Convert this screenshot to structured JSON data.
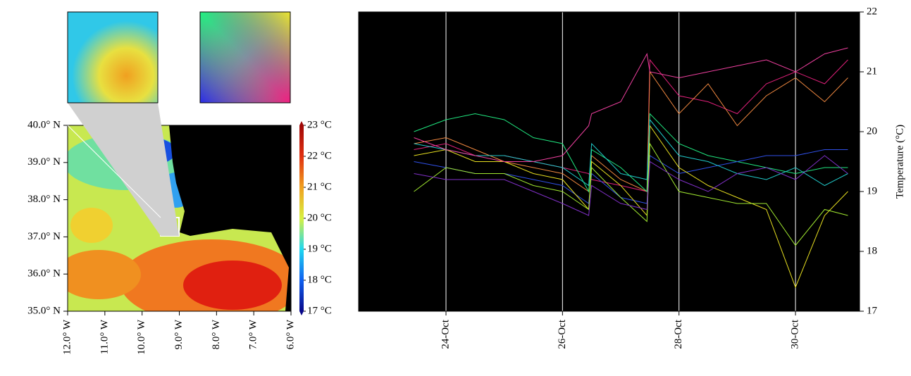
{
  "chart_data": [
    {
      "type": "map",
      "xlim": [
        -12,
        -6
      ],
      "ylim": [
        35,
        40
      ],
      "xticks": [
        {
          "value": -12,
          "label": "12.0° W"
        },
        {
          "value": -11,
          "label": "11.0° W"
        },
        {
          "value": -10,
          "label": "10.0° W"
        },
        {
          "value": -9,
          "label": "9.0° W"
        },
        {
          "value": -8,
          "label": "8.0° W"
        },
        {
          "value": -7,
          "label": "7.0° W"
        },
        {
          "value": -6,
          "label": "6.0° W"
        }
      ],
      "yticks": [
        {
          "value": 35,
          "label": "35.0° N"
        },
        {
          "value": 36,
          "label": "36.0° N"
        },
        {
          "value": 37,
          "label": "37.0° N"
        },
        {
          "value": 38,
          "label": "38.0° N"
        },
        {
          "value": 39,
          "label": "39.0° N"
        },
        {
          "value": 40,
          "label": "40.0° N"
        }
      ],
      "colorbar_lim": [
        17,
        23
      ],
      "colorbar_ticks": [
        {
          "value": 17,
          "label": "17 °C"
        },
        {
          "value": 18,
          "label": "18 °C"
        },
        {
          "value": 19,
          "label": "19 °C"
        },
        {
          "value": 20,
          "label": "20 °C"
        },
        {
          "value": 21,
          "label": "21 °C"
        },
        {
          "value": 22,
          "label": "22 °C"
        },
        {
          "value": 23,
          "label": "23 °C"
        }
      ],
      "colorbar_colors": [
        "#08088a",
        "#1060f0",
        "#20d8f0",
        "#d8f040",
        "#f0a020",
        "#e03010",
        "#a00808"
      ]
    },
    {
      "type": "line",
      "ylabel": "Temperature (°C)",
      "x": [
        23.45,
        24,
        24.5,
        25,
        25.5,
        26,
        26.45,
        26.5,
        27,
        27.45,
        27.5,
        28,
        28.5,
        29,
        29.5,
        30,
        30.5,
        30.9
      ],
      "xlim": [
        22.5,
        31.1
      ],
      "xticks": [
        {
          "value": 24,
          "label": "24-Oct"
        },
        {
          "value": 26,
          "label": "26-Oct"
        },
        {
          "value": 28,
          "label": "28-Oct"
        },
        {
          "value": 30,
          "label": "30-Oct"
        }
      ],
      "ylim": [
        17,
        22
      ],
      "yticks": [
        17,
        18,
        19,
        20,
        21,
        22
      ],
      "grid": true,
      "series": [
        {
          "color": "#e0207a",
          "values": [
            19.7,
            19.8,
            19.6,
            19.6,
            19.5,
            19.4,
            19.3,
            19.2,
            19.1,
            19.0,
            21.2,
            20.6,
            20.5,
            20.3,
            20.8,
            21.0,
            20.8,
            21.2
          ]
        },
        {
          "color": "#f08840",
          "values": [
            19.8,
            19.9,
            19.7,
            19.5,
            19.4,
            19.3,
            19.0,
            19.6,
            19.2,
            19.0,
            21.0,
            20.3,
            20.8,
            20.1,
            20.6,
            20.9,
            20.5,
            20.9
          ]
        },
        {
          "color": "#20e880",
          "values": [
            20.0,
            20.2,
            20.3,
            20.2,
            19.9,
            19.8,
            19.0,
            19.7,
            19.4,
            19.0,
            20.3,
            19.8,
            19.6,
            19.5,
            19.4,
            19.3,
            19.4,
            19.4
          ]
        },
        {
          "color": "#3050e8",
          "values": [
            19.5,
            19.4,
            19.3,
            19.3,
            19.2,
            19.1,
            18.8,
            19.3,
            18.9,
            18.8,
            19.6,
            19.3,
            19.4,
            19.5,
            19.6,
            19.6,
            19.7,
            19.7
          ]
        },
        {
          "color": "#e8e020",
          "values": [
            19.6,
            19.7,
            19.5,
            19.5,
            19.3,
            19.2,
            18.7,
            19.5,
            19.1,
            18.6,
            20.1,
            19.4,
            19.1,
            18.9,
            18.7,
            17.4,
            18.6,
            19.0
          ]
        },
        {
          "color": "#a0e830",
          "values": [
            19.0,
            19.4,
            19.3,
            19.3,
            19.1,
            19.0,
            18.7,
            19.4,
            18.9,
            18.5,
            19.8,
            19.0,
            18.9,
            18.8,
            18.8,
            18.1,
            18.7,
            18.6
          ]
        },
        {
          "color": "#20c8c8",
          "values": [
            19.8,
            19.7,
            19.6,
            19.6,
            19.5,
            19.4,
            19.1,
            19.8,
            19.3,
            19.2,
            20.2,
            19.6,
            19.5,
            19.3,
            19.2,
            19.4,
            19.1,
            19.3
          ]
        },
        {
          "color": "#8030c8",
          "values": [
            19.3,
            19.2,
            19.2,
            19.2,
            19.0,
            18.8,
            18.6,
            19.1,
            18.8,
            18.7,
            19.5,
            19.2,
            19.0,
            19.3,
            19.4,
            19.2,
            19.6,
            19.3
          ]
        },
        {
          "color": "#f040a0",
          "values": [
            19.9,
            19.7,
            19.6,
            19.5,
            19.5,
            19.6,
            20.1,
            20.3,
            20.5,
            21.3,
            21.0,
            20.9,
            21.0,
            21.1,
            21.2,
            21.0,
            21.3,
            21.4
          ]
        }
      ]
    }
  ]
}
